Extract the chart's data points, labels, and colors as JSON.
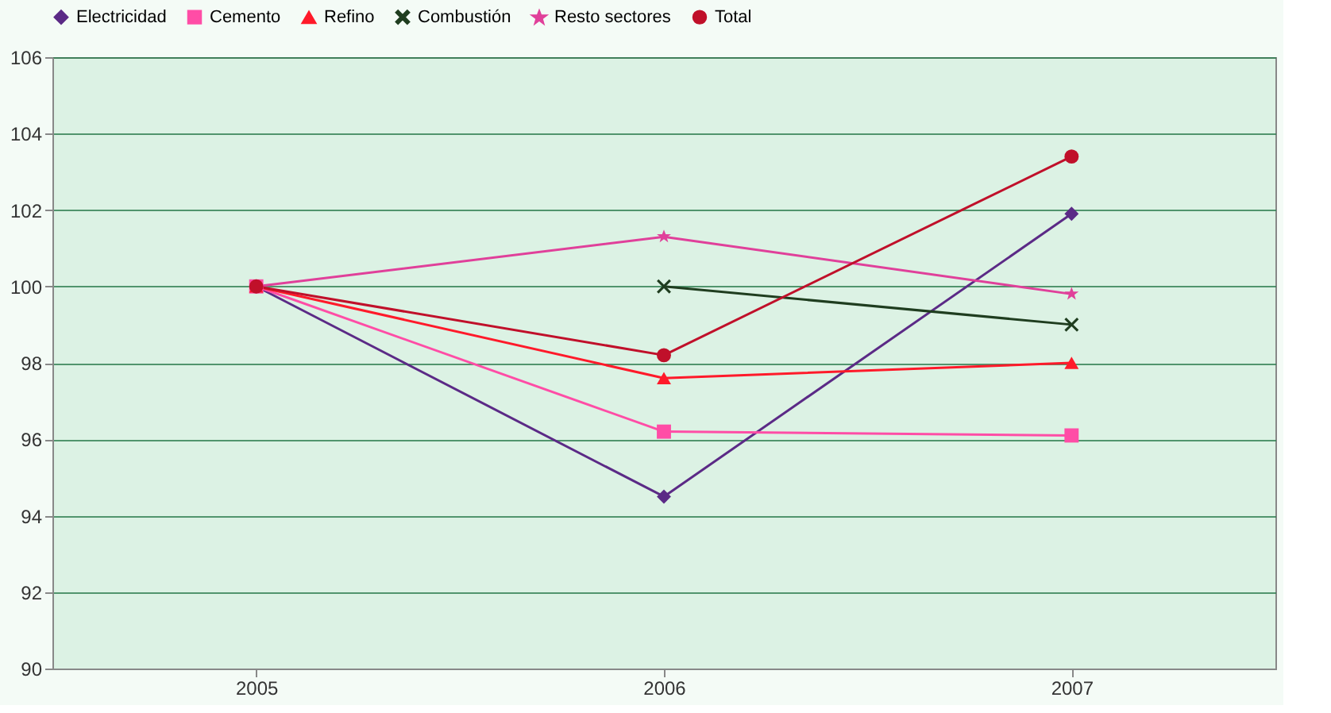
{
  "chart_data": {
    "type": "line",
    "categories": [
      "2005",
      "2006",
      "2007"
    ],
    "series": [
      {
        "name": "Electricidad",
        "color": "#5b2a86",
        "marker": "diamond",
        "values": [
          100,
          94.5,
          101.9
        ]
      },
      {
        "name": "Cemento",
        "color": "#ff4da6",
        "marker": "square",
        "values": [
          100,
          96.2,
          96.1
        ]
      },
      {
        "name": "Refino",
        "color": "#ff1a2a",
        "marker": "triangle",
        "values": [
          100,
          97.6,
          98.0
        ]
      },
      {
        "name": "Combustión",
        "color": "#1f3d1f",
        "marker": "cross",
        "values": [
          null,
          100,
          99.0
        ]
      },
      {
        "name": "Resto sectores",
        "color": "#e0409a",
        "marker": "star",
        "values": [
          100,
          101.3,
          99.8
        ]
      },
      {
        "name": "Total",
        "color": "#c0102a",
        "marker": "circle",
        "values": [
          100,
          98.2,
          103.4
        ]
      }
    ],
    "ylim": [
      90,
      106
    ],
    "yticks": [
      90,
      92,
      94,
      96,
      98,
      100,
      102,
      104,
      106
    ],
    "grid": "y",
    "legend": "top",
    "line_style": "solid"
  }
}
